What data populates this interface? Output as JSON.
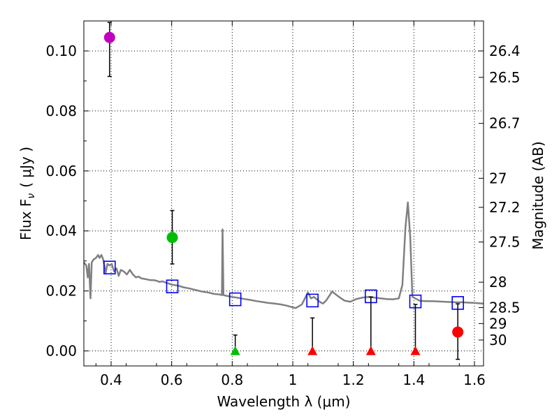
{
  "chart_data": {
    "type": "scatter",
    "xlabel": "Wavelength  λ (μm)",
    "ylabel_left": "Flux  F",
    "ylabel_left_sub": "ν",
    "ylabel_left_unit": "( μJy )",
    "ylabel_right": "Magnitude (AB)",
    "xlim": [
      0.31,
      1.63
    ],
    "ylim": [
      -0.005,
      0.11
    ],
    "x_ticks": [
      0.4,
      0.6,
      0.8,
      1.0,
      1.2,
      1.4,
      1.6
    ],
    "x_tick_labels": [
      "0.4",
      "0.6",
      "0.8",
      "1",
      "1.2",
      "1.4",
      "1.6"
    ],
    "y_ticks": [
      0.0,
      0.02,
      0.04,
      0.06,
      0.08,
      0.1
    ],
    "y_tick_labels": [
      "0.00",
      "0.02",
      "0.04",
      "0.06",
      "0.08",
      "0.10"
    ],
    "right_ticks": [
      {
        "mag": 26.4,
        "label": "26.4"
      },
      {
        "mag": 26.5,
        "label": "26.5"
      },
      {
        "mag": 26.7,
        "label": "26.7"
      },
      {
        "mag": 27.0,
        "label": "27"
      },
      {
        "mag": 27.2,
        "label": "27.2"
      },
      {
        "mag": 27.5,
        "label": "27.5"
      },
      {
        "mag": 28.0,
        "label": "28"
      },
      {
        "mag": 28.5,
        "label": "28.5"
      },
      {
        "mag": 29.0,
        "label": "29"
      },
      {
        "mag": 30.0,
        "label": "30"
      }
    ],
    "grid": true,
    "colors": {
      "model": "#808080",
      "model_points": "#0000ff",
      "errorbar": "#000000",
      "magenta": "#bf00bf",
      "green": "#00bf00",
      "red": "#ff0000"
    },
    "model_spectrum": [
      [
        0.31,
        0.0295
      ],
      [
        0.318,
        0.0285
      ],
      [
        0.323,
        0.0245
      ],
      [
        0.327,
        0.029
      ],
      [
        0.332,
        0.0175
      ],
      [
        0.336,
        0.0295
      ],
      [
        0.342,
        0.0305
      ],
      [
        0.35,
        0.031
      ],
      [
        0.357,
        0.032
      ],
      [
        0.362,
        0.031
      ],
      [
        0.368,
        0.032
      ],
      [
        0.374,
        0.0305
      ],
      [
        0.382,
        0.026
      ],
      [
        0.388,
        0.029
      ],
      [
        0.395,
        0.0285
      ],
      [
        0.402,
        0.029
      ],
      [
        0.41,
        0.0265
      ],
      [
        0.418,
        0.0275
      ],
      [
        0.425,
        0.025
      ],
      [
        0.432,
        0.027
      ],
      [
        0.442,
        0.0265
      ],
      [
        0.452,
        0.0255
      ],
      [
        0.462,
        0.027
      ],
      [
        0.472,
        0.0255
      ],
      [
        0.482,
        0.0245
      ],
      [
        0.49,
        0.0248
      ],
      [
        0.5,
        0.0242
      ],
      [
        0.51,
        0.024
      ],
      [
        0.52,
        0.0238
      ],
      [
        0.53,
        0.0236
      ],
      [
        0.54,
        0.0236
      ],
      [
        0.55,
        0.0234
      ],
      [
        0.56,
        0.023
      ],
      [
        0.57,
        0.0232
      ],
      [
        0.58,
        0.0228
      ],
      [
        0.59,
        0.0225
      ],
      [
        0.6,
        0.0221
      ],
      [
        0.62,
        0.0218
      ],
      [
        0.64,
        0.0212
      ],
      [
        0.66,
        0.0208
      ],
      [
        0.68,
        0.0203
      ],
      [
        0.7,
        0.0198
      ],
      [
        0.72,
        0.0195
      ],
      [
        0.74,
        0.019
      ],
      [
        0.76,
        0.0188
      ],
      [
        0.766,
        0.0186
      ],
      [
        0.768,
        0.0405
      ],
      [
        0.771,
        0.0186
      ],
      [
        0.78,
        0.0184
      ],
      [
        0.8,
        0.018
      ],
      [
        0.82,
        0.0177
      ],
      [
        0.84,
        0.0173
      ],
      [
        0.86,
        0.017
      ],
      [
        0.88,
        0.0166
      ],
      [
        0.9,
        0.0163
      ],
      [
        0.92,
        0.016
      ],
      [
        0.94,
        0.0158
      ],
      [
        0.96,
        0.0155
      ],
      [
        0.98,
        0.0151
      ],
      [
        1.0,
        0.0145
      ],
      [
        1.01,
        0.0143
      ],
      [
        1.03,
        0.0155
      ],
      [
        1.05,
        0.0195
      ],
      [
        1.06,
        0.0175
      ],
      [
        1.07,
        0.018
      ],
      [
        1.09,
        0.0163
      ],
      [
        1.1,
        0.0158
      ],
      [
        1.11,
        0.0168
      ],
      [
        1.13,
        0.0198
      ],
      [
        1.14,
        0.019
      ],
      [
        1.15,
        0.0182
      ],
      [
        1.17,
        0.0168
      ],
      [
        1.19,
        0.0164
      ],
      [
        1.21,
        0.0173
      ],
      [
        1.23,
        0.0178
      ],
      [
        1.25,
        0.018
      ],
      [
        1.27,
        0.0178
      ],
      [
        1.29,
        0.0175
      ],
      [
        1.31,
        0.0173
      ],
      [
        1.33,
        0.0172
      ],
      [
        1.35,
        0.0175
      ],
      [
        1.362,
        0.022
      ],
      [
        1.372,
        0.041
      ],
      [
        1.38,
        0.0495
      ],
      [
        1.388,
        0.038
      ],
      [
        1.395,
        0.018
      ],
      [
        1.42,
        0.0167
      ],
      [
        1.44,
        0.0166
      ],
      [
        1.46,
        0.0166
      ],
      [
        1.48,
        0.0165
      ],
      [
        1.5,
        0.0164
      ],
      [
        1.52,
        0.0163
      ],
      [
        1.54,
        0.0162
      ],
      [
        1.56,
        0.0162
      ],
      [
        1.58,
        0.0161
      ],
      [
        1.6,
        0.016
      ],
      [
        1.63,
        0.0158
      ]
    ],
    "model_points": [
      {
        "x": 0.395,
        "y": 0.0278
      },
      {
        "x": 0.602,
        "y": 0.0215
      },
      {
        "x": 0.81,
        "y": 0.0172
      },
      {
        "x": 1.065,
        "y": 0.0168
      },
      {
        "x": 1.258,
        "y": 0.0182
      },
      {
        "x": 1.405,
        "y": 0.0165
      },
      {
        "x": 1.545,
        "y": 0.016
      }
    ],
    "observations": [
      {
        "x": 0.395,
        "y": 0.1045,
        "yerr_low": 0.0915,
        "yerr_high": 0.1095,
        "marker": "circle",
        "color": "magenta"
      },
      {
        "x": 0.602,
        "y": 0.0378,
        "yerr_low": 0.029,
        "yerr_high": 0.0468,
        "marker": "circle",
        "color": "green"
      },
      {
        "x": 0.81,
        "y": 0.0,
        "yerr_low": 0.0,
        "yerr_high": 0.0053,
        "marker": "triangle",
        "color": "green"
      },
      {
        "x": 1.065,
        "y": 0.0,
        "yerr_low": 0.0,
        "yerr_high": 0.011,
        "marker": "triangle",
        "color": "red"
      },
      {
        "x": 1.258,
        "y": 0.0,
        "yerr_low": 0.0,
        "yerr_high": 0.018,
        "marker": "triangle",
        "color": "red"
      },
      {
        "x": 1.405,
        "y": 0.0,
        "yerr_low": 0.0,
        "yerr_high": 0.0155,
        "marker": "triangle",
        "color": "red"
      },
      {
        "x": 1.545,
        "y": 0.0063,
        "yerr_low": -0.0028,
        "yerr_high": 0.0157,
        "marker": "circle",
        "color": "red"
      }
    ]
  }
}
